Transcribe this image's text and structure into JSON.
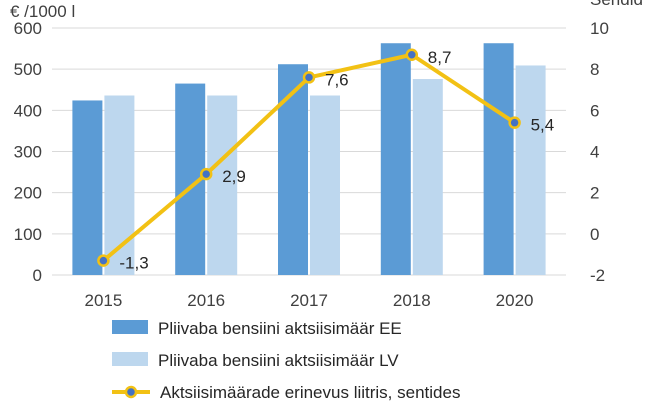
{
  "chart_data": {
    "type": "bar",
    "categories": [
      "2015",
      "2016",
      "2017",
      "2018",
      "2020"
    ],
    "left_axis": {
      "unit_label": "€ /1000 l",
      "ylim": [
        0,
        600
      ],
      "ticks": [
        0,
        100,
        200,
        300,
        400,
        500,
        600
      ]
    },
    "right_axis": {
      "unit_label": "Sendid",
      "ylim": [
        -2,
        10
      ],
      "ticks": [
        -2,
        0,
        2,
        4,
        6,
        8,
        10
      ]
    },
    "series": [
      {
        "name": "Pliivaba bensiini aktsiisimäär EE",
        "type": "bar",
        "axis": "left",
        "color": "#5b9bd5",
        "values": [
          424,
          465,
          512,
          563,
          563
        ]
      },
      {
        "name": "Pliivaba bensiini aktsiisimäär LV",
        "type": "bar",
        "axis": "left",
        "color": "#bdd7ee",
        "values": [
          436,
          436,
          436,
          476,
          509
        ]
      },
      {
        "name": "Aktsiisimäärade erinevus liitris, sentides",
        "type": "line",
        "axis": "right",
        "color": "#f2c114",
        "marker_color": "#4472c4",
        "values": [
          -1.3,
          2.9,
          7.6,
          8.7,
          5.4
        ],
        "labels": [
          "-1,3",
          "2,9",
          "7,6",
          "8,7",
          "5,4"
        ]
      }
    ],
    "grid": true,
    "legend_position": "bottom"
  }
}
